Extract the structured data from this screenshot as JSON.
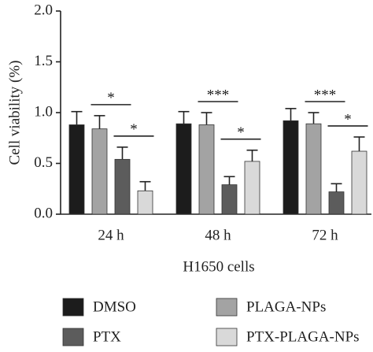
{
  "chart_data": {
    "type": "bar",
    "ylabel": "Cell viability (%)",
    "xlabel": "H1650 cells",
    "categories": [
      "24 h",
      "48 h",
      "72 h"
    ],
    "series": [
      {
        "name": "DMSO",
        "color": "#1c1c1c",
        "values": [
          0.88,
          0.89,
          0.92
        ],
        "errors": [
          0.13,
          0.12,
          0.12
        ]
      },
      {
        "name": "PLAGA-NPs",
        "color": "#a3a3a3",
        "values": [
          0.84,
          0.88,
          0.89
        ],
        "errors": [
          0.13,
          0.12,
          0.11
        ]
      },
      {
        "name": "PTX",
        "color": "#5c5c5c",
        "values": [
          0.54,
          0.29,
          0.22
        ],
        "errors": [
          0.12,
          0.08,
          0.08
        ]
      },
      {
        "name": "PTX-PLAGA-NPs",
        "color": "#d9d9d9",
        "values": [
          0.23,
          0.52,
          0.62
        ],
        "errors": [
          0.09,
          0.11,
          0.14
        ]
      }
    ],
    "significance": [
      [
        "*",
        "*"
      ],
      [
        "***",
        "*"
      ],
      [
        "***",
        "*"
      ]
    ],
    "ylim": [
      0,
      2
    ],
    "yticks": [
      {
        "value": 0,
        "label": "0.0"
      },
      0.5,
      {
        "value": 1,
        "label": "1.0"
      },
      1.5,
      {
        "value": 2,
        "label": "2.0"
      }
    ],
    "grid": false
  }
}
